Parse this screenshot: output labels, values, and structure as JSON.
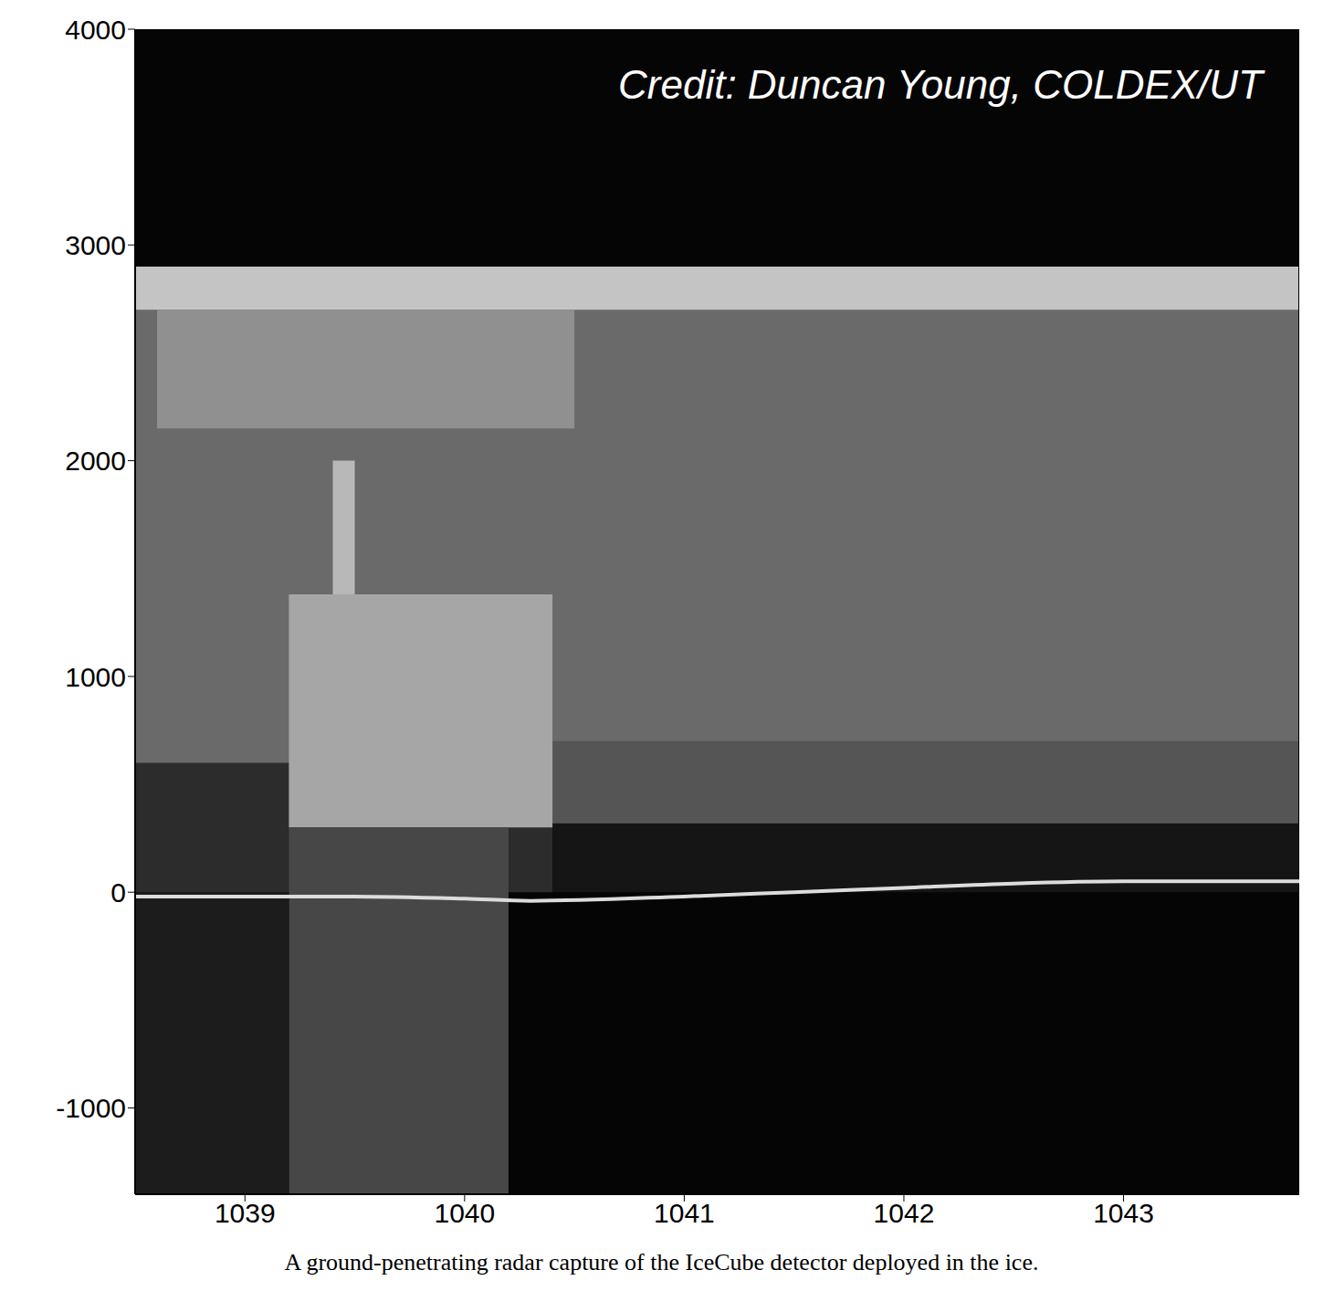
{
  "chart_data": {
    "type": "radargram",
    "annotations": [
      "Credit: Duncan Young, COLDEX/UT"
    ],
    "caption": "A ground-penetrating radar capture of the IceCube detector deployed in the ice.",
    "xlim": [
      1038.5,
      1043.8
    ],
    "xticks": [
      1039,
      1040,
      1041,
      1042,
      1043
    ],
    "ylim": [
      -1400,
      4000
    ],
    "yticks": [
      -1000,
      0,
      1000,
      2000,
      3000,
      4000
    ],
    "background": "#050505",
    "regions": [
      {
        "x": [
          1038.5,
          1043.8
        ],
        "y": [
          300,
          2900
        ],
        "color": "#6a6a6a"
      },
      {
        "x": [
          1038.5,
          1040.4
        ],
        "y": [
          0,
          600
        ],
        "color": "#2c2c2c"
      },
      {
        "x": [
          1040.4,
          1043.8
        ],
        "y": [
          0,
          320
        ],
        "color": "#151515"
      },
      {
        "x": [
          1040.4,
          1043.8
        ],
        "y": [
          320,
          700
        ],
        "color": "#555555"
      },
      {
        "x": [
          1038.5,
          1043.8
        ],
        "y": [
          2700,
          2900
        ],
        "color": "#c4c4c4"
      },
      {
        "x": [
          1038.6,
          1040.5
        ],
        "y": [
          2150,
          2700
        ],
        "color": "#909090"
      },
      {
        "x": [
          1039.2,
          1040.4
        ],
        "y": [
          300,
          1380
        ],
        "color": "#a6a6a6"
      },
      {
        "x": [
          1039.4,
          1039.5
        ],
        "y": [
          1380,
          2000
        ],
        "color": "#b8b8b8"
      },
      {
        "x": [
          1039.2,
          1040.2
        ],
        "y": [
          -1400,
          300
        ],
        "color": "#474747"
      },
      {
        "x": [
          1038.5,
          1039.2
        ],
        "y": [
          -1400,
          0
        ],
        "color": "#1c1c1c"
      }
    ],
    "x": [
      1038.5,
      1039.0,
      1039.5,
      1040.0,
      1040.3,
      1041.0,
      1041.5,
      1042.0,
      1042.5,
      1043.0,
      1043.8
    ],
    "values": [
      -20,
      -20,
      -20,
      -30,
      -40,
      -20,
      0,
      20,
      40,
      50,
      50
    ],
    "color": "#dcdcdc"
  }
}
